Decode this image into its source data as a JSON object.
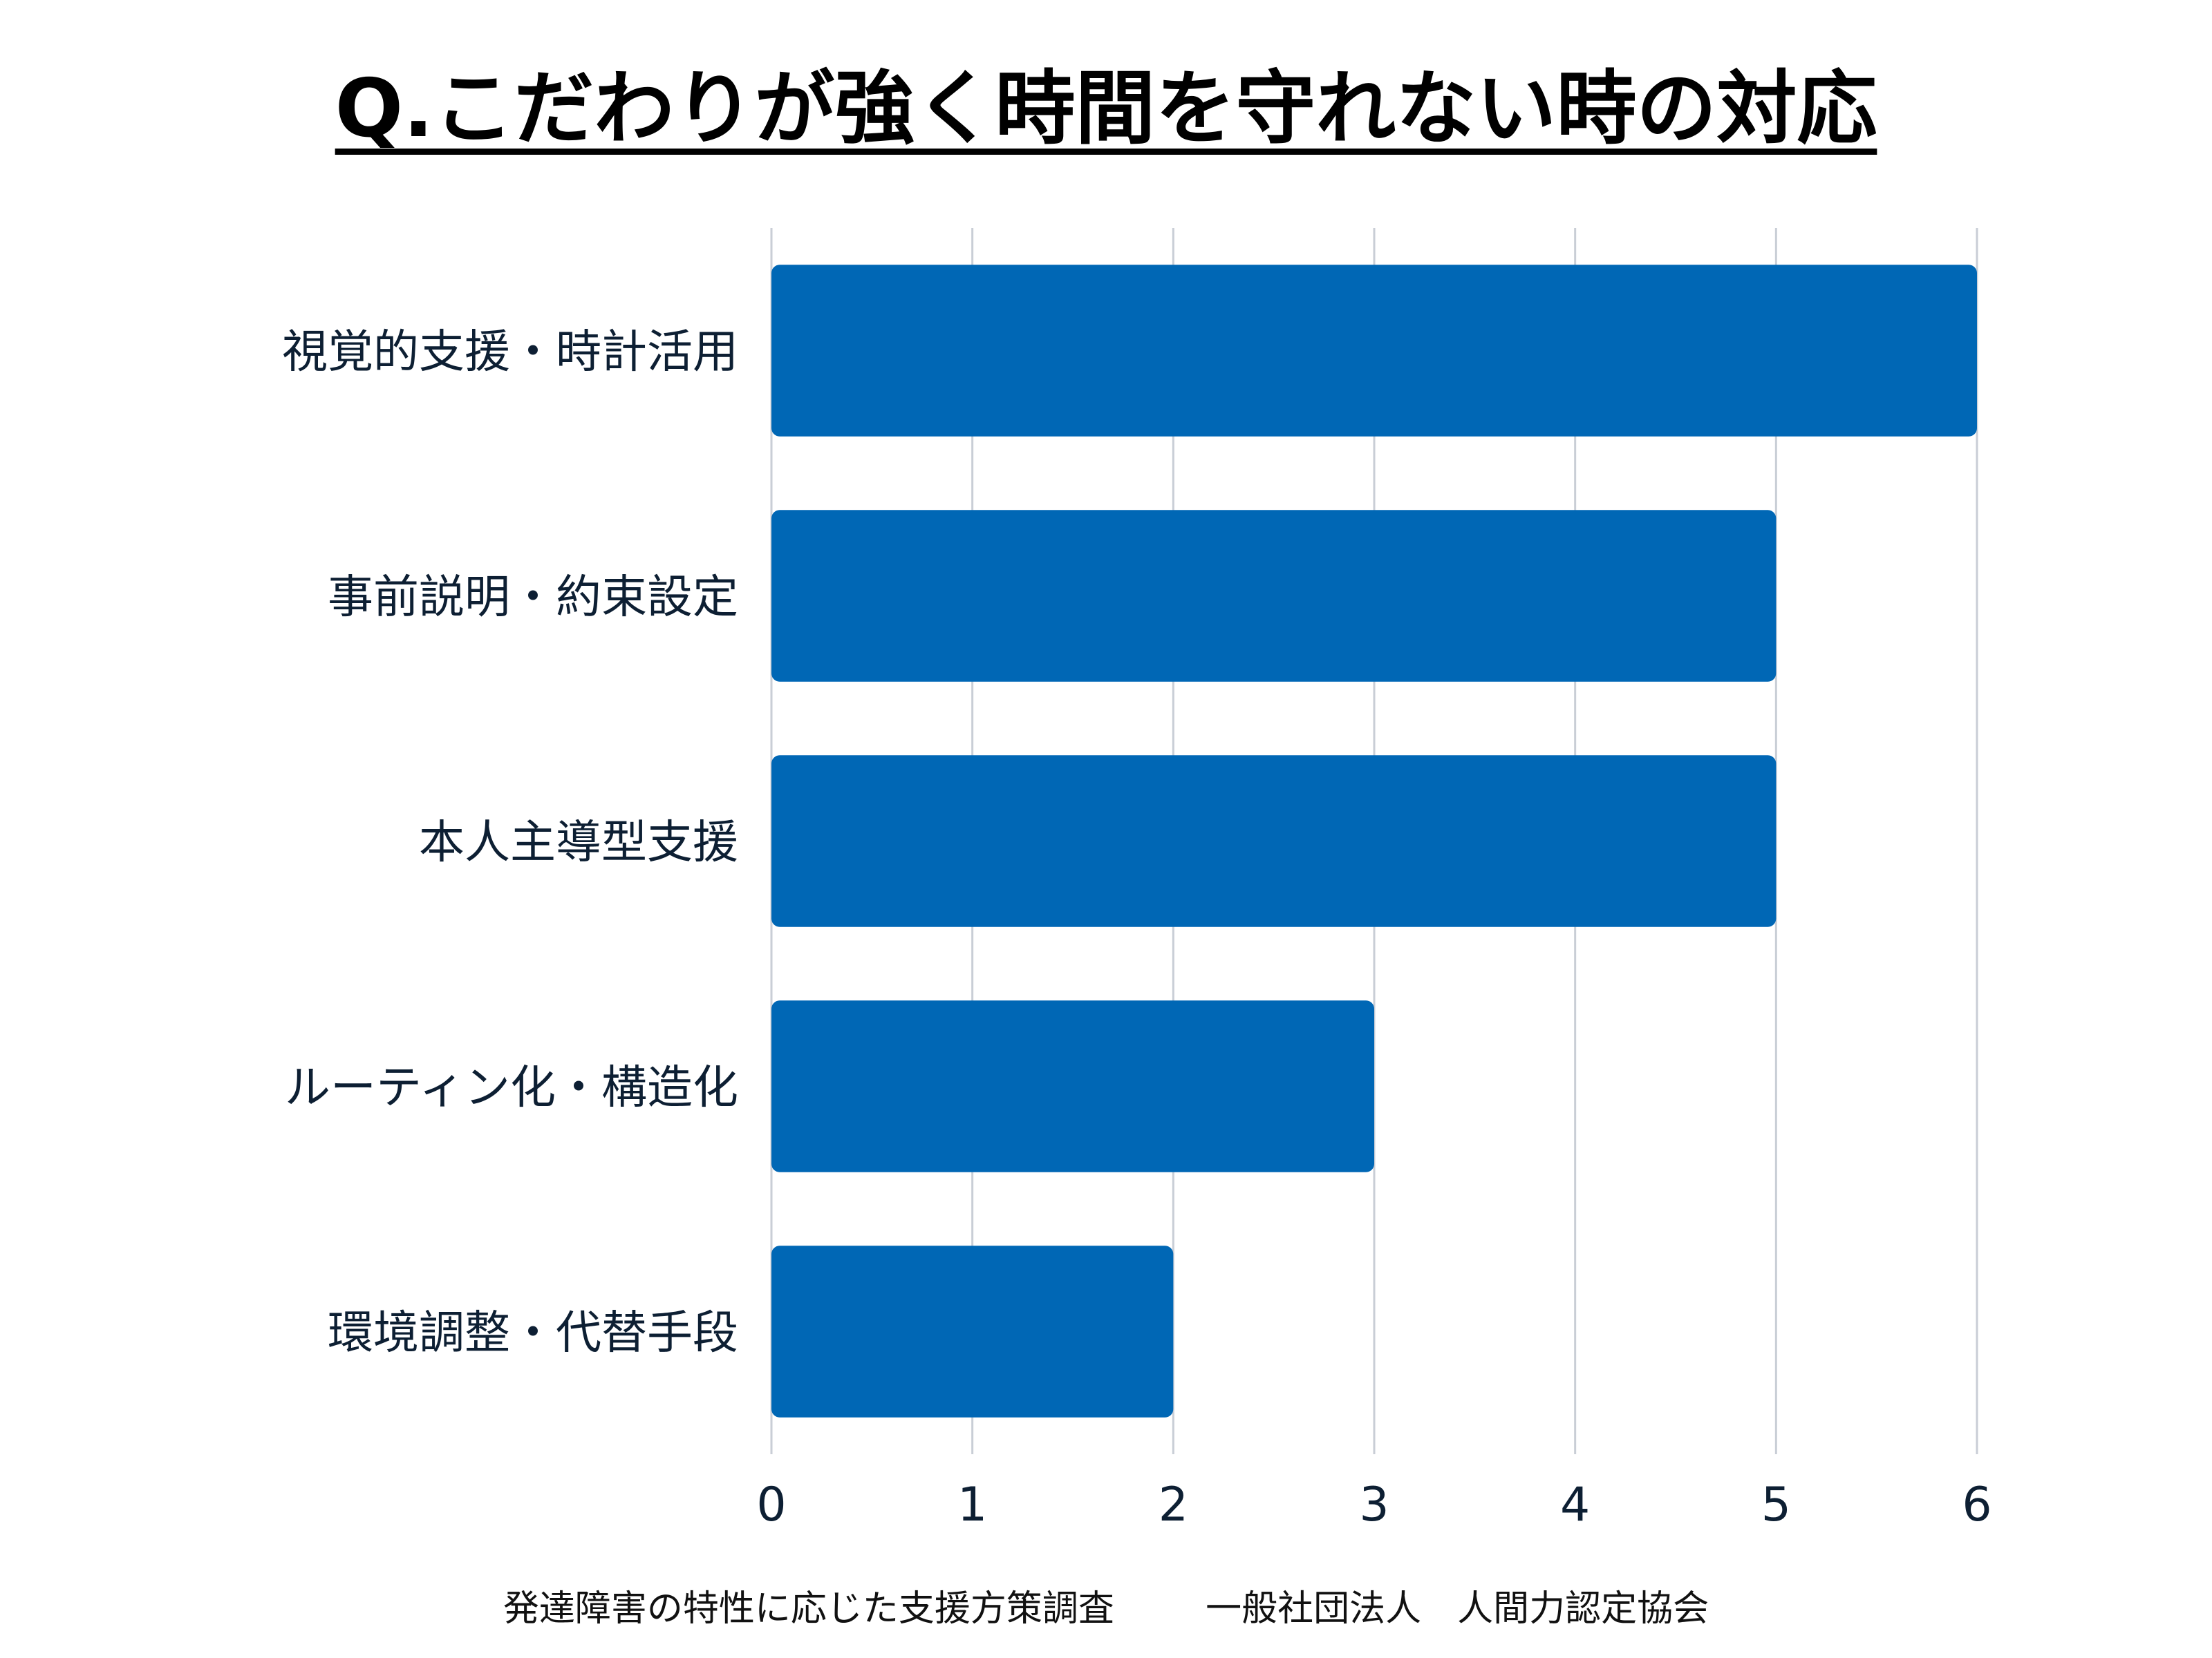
{
  "chart_data": {
    "type": "bar",
    "orientation": "horizontal",
    "title": "Q.こだわりが強く時間を守れない時の対応",
    "categories": [
      "視覚的支援・時計活用",
      "事前説明・約束設定",
      "本人主導型支援",
      "ルーティン化・構造化",
      "環境調整・代替手段"
    ],
    "values": [
      6,
      5,
      5,
      3,
      2
    ],
    "xlim": [
      0,
      6
    ],
    "xticks": [
      "0",
      "1",
      "2",
      "3",
      "4",
      "5",
      "6"
    ],
    "grid": true,
    "bar_color": "#0067b5"
  },
  "footer": {
    "survey": "発達障害の特性に応じた支援方策調査",
    "organization": "一般社団法人　人間力認定協会"
  }
}
